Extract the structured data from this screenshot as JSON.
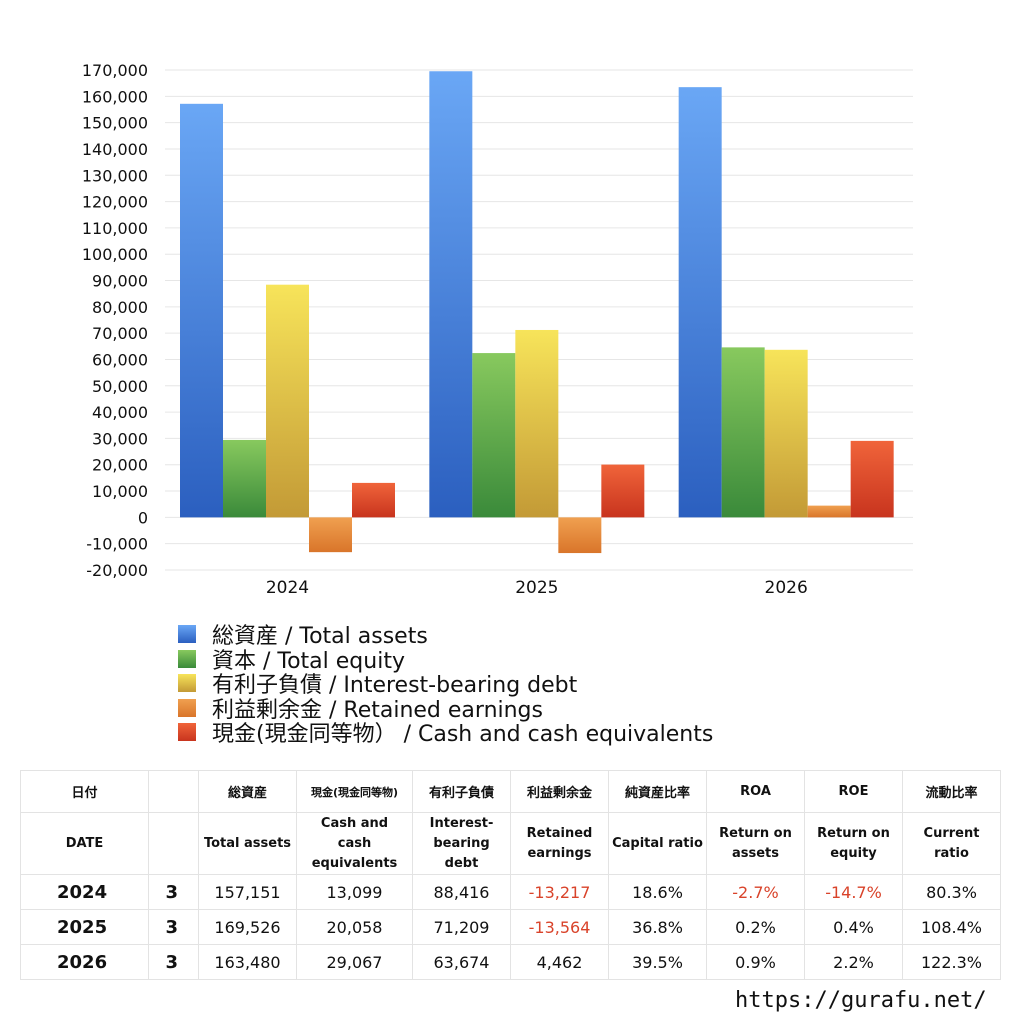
{
  "chart_data": {
    "type": "bar",
    "categories": [
      "2024",
      "2025",
      "2026"
    ],
    "series": [
      {
        "name": "総資産 / Total assets",
        "values": [
          157151,
          169526,
          163480
        ],
        "color_top": "#6aa7f5",
        "color_bottom": "#2b5fbf"
      },
      {
        "name": "資本 / Total equity",
        "values": [
          29426,
          62432,
          64598
        ],
        "color_top": "#88c95e",
        "color_bottom": "#3a8a3a"
      },
      {
        "name": "有利子負債 / Interest-bearing debt",
        "values": [
          88416,
          71209,
          63674
        ],
        "color_top": "#f7e45a",
        "color_bottom": "#c39a36"
      },
      {
        "name": "利益剰余金 / Retained earnings",
        "values": [
          -13217,
          -13564,
          4462
        ],
        "color_top": "#f0a050",
        "color_bottom": "#d9752a"
      },
      {
        "name": "現金(現金同等物） /  Cash and cash equivalents",
        "values": [
          13099,
          20058,
          29067
        ],
        "color_top": "#f0643a",
        "color_bottom": "#c8341e"
      }
    ],
    "yticks": [
      "170,000",
      "160,000",
      "150,000",
      "140,000",
      "130,000",
      "120,000",
      "110,000",
      "100,000",
      "90,000",
      "80,000",
      "70,000",
      "60,000",
      "50,000",
      "40,000",
      "30,000",
      "20,000",
      "10,000",
      "0",
      "-10,000",
      "-20,000"
    ],
    "ylim": [
      -20000,
      170000
    ],
    "grid": true,
    "legend_position": "bottom"
  },
  "table": {
    "header1": [
      "日付",
      "",
      "総資産",
      "現金(現金同等物)",
      "有利子負債",
      "利益剰余金",
      "純資産比率",
      "ROA",
      "ROE",
      "流動比率"
    ],
    "header2": [
      "DATE",
      "",
      "Total assets",
      "Cash and cash equivalents",
      "Interest-bearing debt",
      "Retained earnings",
      "Capital ratio",
      "Return on assets",
      "Return on equity",
      "Current ratio"
    ],
    "rows": [
      {
        "year": "2024",
        "month": "3",
        "total_assets": "157,151",
        "cash": "13,099",
        "debt": "88,416",
        "retained": "-13,217",
        "capital_ratio": "18.6%",
        "roa": "-2.7%",
        "roe": "-14.7%",
        "current_ratio": "80.3%"
      },
      {
        "year": "2025",
        "month": "3",
        "total_assets": "169,526",
        "cash": "20,058",
        "debt": "71,209",
        "retained": "-13,564",
        "capital_ratio": "36.8%",
        "roa": "0.2%",
        "roe": "0.4%",
        "current_ratio": "108.4%"
      },
      {
        "year": "2026",
        "month": "3",
        "total_assets": "163,480",
        "cash": "29,067",
        "debt": "63,674",
        "retained": "4,462",
        "capital_ratio": "39.5%",
        "roa": "0.9%",
        "roe": "2.2%",
        "current_ratio": "122.3%"
      }
    ],
    "negative_color": "#d9432a"
  },
  "footer": {
    "url": "https://gurafu.net/"
  }
}
